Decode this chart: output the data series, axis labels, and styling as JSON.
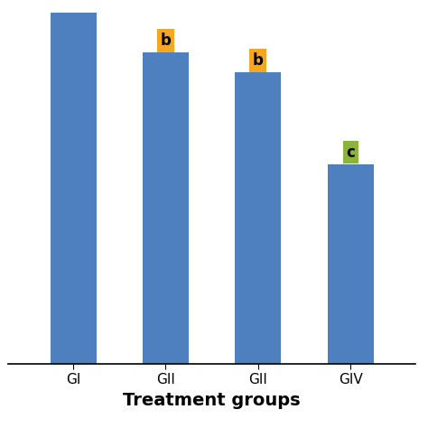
{
  "categories": [
    "GI",
    "GII",
    "GII",
    "GIV"
  ],
  "values": [
    92,
    78,
    73,
    50
  ],
  "bar_color": "#4E7FBE",
  "xlabel": "Treatment groups",
  "ylabel": "",
  "annotations": [
    {
      "index": 0,
      "label": null,
      "box_color": null
    },
    {
      "index": 1,
      "label": "b",
      "box_color": "#F5A623"
    },
    {
      "index": 2,
      "label": "b",
      "box_color": "#F5A623"
    },
    {
      "index": 3,
      "label": "c",
      "box_color": "#8DB43A"
    }
  ],
  "annotation_fontsize": 12,
  "xlabel_fontsize": 14,
  "xlabel_fontweight": "bold",
  "tick_fontsize": 11,
  "background_color": "#ffffff",
  "bar_width": 0.5,
  "ylim_max": 88
}
